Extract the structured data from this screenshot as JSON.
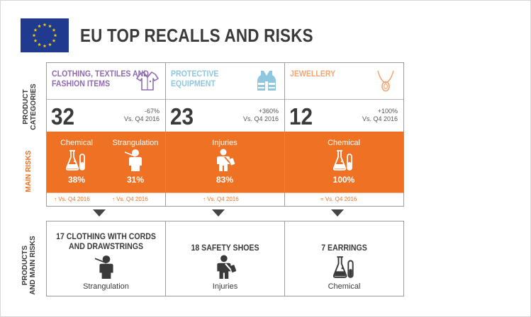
{
  "header": {
    "title": "EU TOP RECALLS AND RISKS",
    "flag": "eu-flag-icon"
  },
  "side_labels": {
    "product_categories": [
      "PRODUCT",
      "CATEGORIES"
    ],
    "main_risks": "MAIN RISKS",
    "products_and_main_risks": [
      "PRODUCTS",
      "AND MAIN RISKS"
    ]
  },
  "colors": {
    "accent": "#ee7124",
    "purple": "#8e6bb0",
    "light_blue": "#8fc7df",
    "light_orange": "#f2a673",
    "flag_blue": "#1f3a8f",
    "flag_star": "#f5d000"
  },
  "columns": [
    {
      "category_lines": [
        "CLOTHING, TEXTILES AND",
        "FASHION ITEMS"
      ],
      "category_color": "#8e6bb0",
      "icon": "shirt-icon",
      "count": "32",
      "change": "-67%",
      "change_ref": "Vs. Q4 2016",
      "risks": [
        {
          "name": "Chemical",
          "icon": "flask-icon",
          "pct": "38%"
        },
        {
          "name": "Strangulation",
          "icon": "strangulation-icon",
          "pct": "31%"
        }
      ],
      "risk_changes": [
        "↑ Vs. Q4 2016",
        "↑ Vs. Q4 2016"
      ],
      "product_lines": [
        "17 CLOTHING WITH CORDS",
        "AND DRAWSTRINGS"
      ],
      "product_icon": "strangulation-icon",
      "product_risk": "Strangulation"
    },
    {
      "category_lines": [
        "PROTECTIVE",
        "EQUIPMENT"
      ],
      "category_color": "#8fc7df",
      "icon": "vest-icon",
      "count": "23",
      "change": "+360%",
      "change_ref": "Vs. Q4 2016",
      "risks": [
        {
          "name": "Injuries",
          "icon": "injury-icon",
          "pct": "83%"
        }
      ],
      "risk_changes": [
        "↑ Vs. Q4 2016"
      ],
      "product_lines": [
        "18 SAFETY SHOES"
      ],
      "product_icon": "injury-icon",
      "product_risk": "Injuries"
    },
    {
      "category_lines": [
        "JEWELLERY"
      ],
      "category_color": "#f2a673",
      "icon": "necklace-icon",
      "count": "12",
      "change": "+100%",
      "change_ref": "Vs. Q4 2016",
      "risks": [
        {
          "name": "Chemical",
          "icon": "flask-icon",
          "pct": "100%"
        }
      ],
      "risk_changes": [
        "= Vs. Q4 2016"
      ],
      "product_lines": [
        "7 EARRINGS"
      ],
      "product_icon": "flask-icon",
      "product_risk": "Chemical"
    }
  ]
}
